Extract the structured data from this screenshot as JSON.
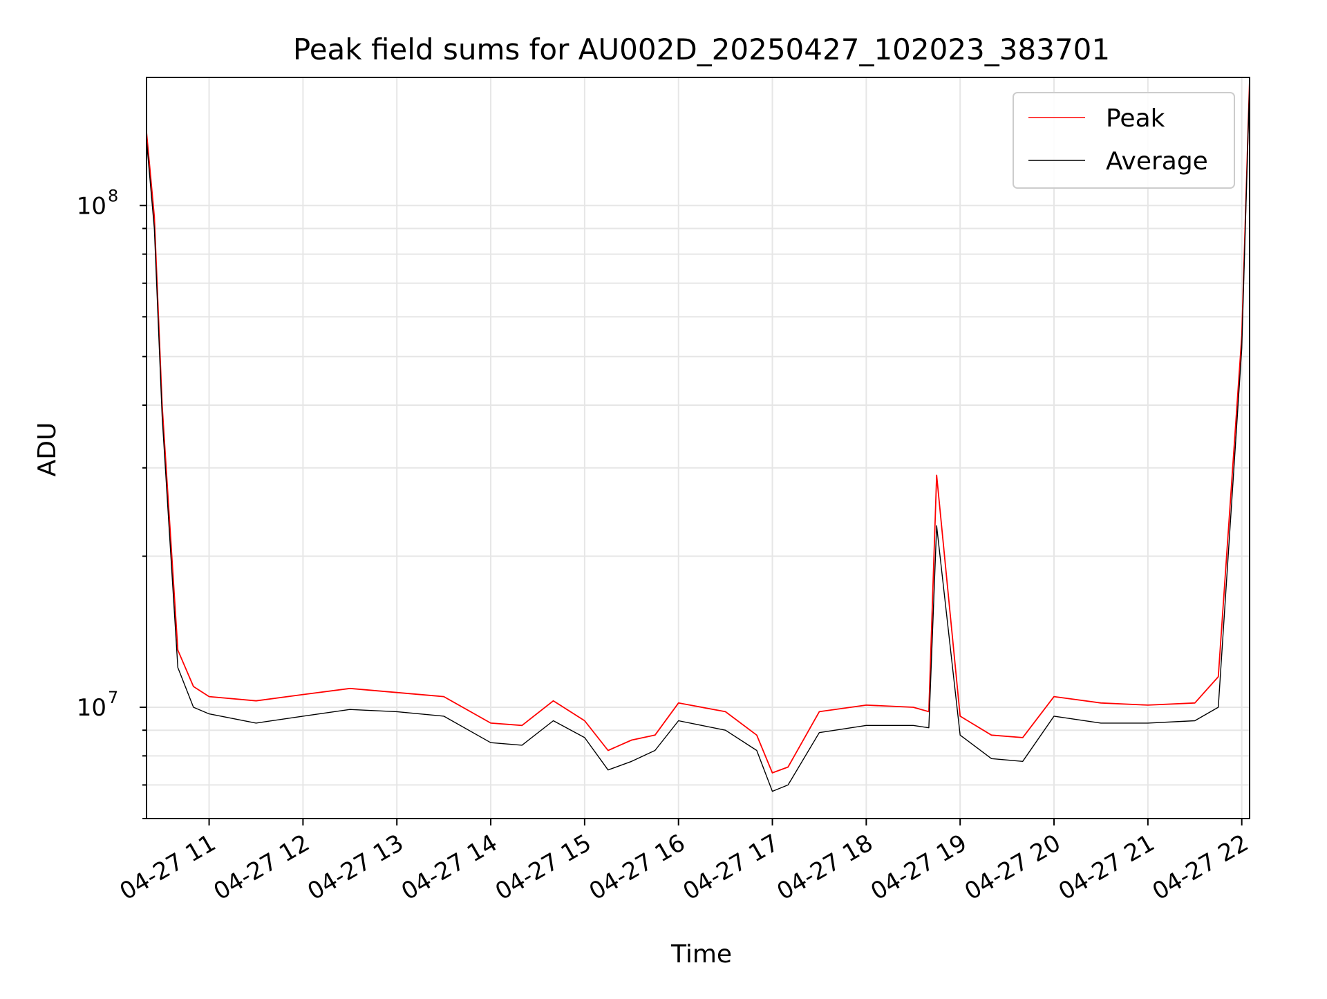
{
  "chart_data": {
    "type": "line",
    "title": "Peak field sums for AU002D_20250427_102023_383701",
    "xlabel": "Time",
    "ylabel": "ADU",
    "y_scale": "log",
    "ylim": [
      6000000,
      180000000
    ],
    "xlim": [
      "2025-04-27 10:20",
      "2025-04-27 22:05"
    ],
    "x_ticks": [
      "04-27 11",
      "04-27 12",
      "04-27 13",
      "04-27 14",
      "04-27 15",
      "04-27 16",
      "04-27 17",
      "04-27 18",
      "04-27 19",
      "04-27 20",
      "04-27 21",
      "04-27 22"
    ],
    "y_tick_major": [
      {
        "base": "10",
        "exp": "7",
        "value": 10000000
      },
      {
        "base": "10",
        "exp": "8",
        "value": 100000000
      }
    ],
    "grid": true,
    "legend_position": "upper right",
    "series": [
      {
        "name": "Peak",
        "color": "#ff0000",
        "x": [
          "2025-04-27 10:20",
          "2025-04-27 10:25",
          "2025-04-27 10:30",
          "2025-04-27 10:40",
          "2025-04-27 10:50",
          "2025-04-27 11:00",
          "2025-04-27 11:30",
          "2025-04-27 12:00",
          "2025-04-27 12:30",
          "2025-04-27 13:00",
          "2025-04-27 13:30",
          "2025-04-27 14:00",
          "2025-04-27 14:20",
          "2025-04-27 14:40",
          "2025-04-27 15:00",
          "2025-04-27 15:15",
          "2025-04-27 15:30",
          "2025-04-27 15:45",
          "2025-04-27 16:00",
          "2025-04-27 16:30",
          "2025-04-27 16:50",
          "2025-04-27 17:00",
          "2025-04-27 17:10",
          "2025-04-27 17:30",
          "2025-04-27 18:00",
          "2025-04-27 18:30",
          "2025-04-27 18:40",
          "2025-04-27 18:45",
          "2025-04-27 19:00",
          "2025-04-27 19:20",
          "2025-04-27 19:40",
          "2025-04-27 20:00",
          "2025-04-27 20:30",
          "2025-04-27 21:00",
          "2025-04-27 21:30",
          "2025-04-27 21:45",
          "2025-04-27 22:00",
          "2025-04-27 22:05"
        ],
        "y": [
          140000000,
          95000000,
          40000000,
          13000000,
          11000000,
          10500000,
          10300000,
          10600000,
          10900000,
          10700000,
          10500000,
          9300000,
          9200000,
          10300000,
          9400000,
          8200000,
          8600000,
          8800000,
          10200000,
          9800000,
          8800000,
          7400000,
          7600000,
          9800000,
          10100000,
          10000000,
          9800000,
          29000000,
          9600000,
          8800000,
          8700000,
          10500000,
          10200000,
          10100000,
          10200000,
          11500000,
          55000000,
          178000000
        ]
      },
      {
        "name": "Average",
        "color": "#000000",
        "x": [
          "2025-04-27 10:20",
          "2025-04-27 10:25",
          "2025-04-27 10:30",
          "2025-04-27 10:40",
          "2025-04-27 10:50",
          "2025-04-27 11:00",
          "2025-04-27 11:30",
          "2025-04-27 12:00",
          "2025-04-27 12:30",
          "2025-04-27 13:00",
          "2025-04-27 13:30",
          "2025-04-27 14:00",
          "2025-04-27 14:20",
          "2025-04-27 14:40",
          "2025-04-27 15:00",
          "2025-04-27 15:15",
          "2025-04-27 15:30",
          "2025-04-27 15:45",
          "2025-04-27 16:00",
          "2025-04-27 16:30",
          "2025-04-27 16:50",
          "2025-04-27 17:00",
          "2025-04-27 17:10",
          "2025-04-27 17:30",
          "2025-04-27 18:00",
          "2025-04-27 18:30",
          "2025-04-27 18:40",
          "2025-04-27 18:45",
          "2025-04-27 19:00",
          "2025-04-27 19:20",
          "2025-04-27 19:40",
          "2025-04-27 20:00",
          "2025-04-27 20:30",
          "2025-04-27 21:00",
          "2025-04-27 21:30",
          "2025-04-27 21:45",
          "2025-04-27 22:00",
          "2025-04-27 22:05"
        ],
        "y": [
          135000000,
          90000000,
          38000000,
          12000000,
          10000000,
          9700000,
          9300000,
          9600000,
          9900000,
          9800000,
          9600000,
          8500000,
          8400000,
          9400000,
          8700000,
          7500000,
          7800000,
          8200000,
          9400000,
          9000000,
          8200000,
          6800000,
          7000000,
          8900000,
          9200000,
          9200000,
          9100000,
          23000000,
          8800000,
          7900000,
          7800000,
          9600000,
          9300000,
          9300000,
          9400000,
          10000000,
          52000000,
          175000000
        ]
      }
    ]
  }
}
